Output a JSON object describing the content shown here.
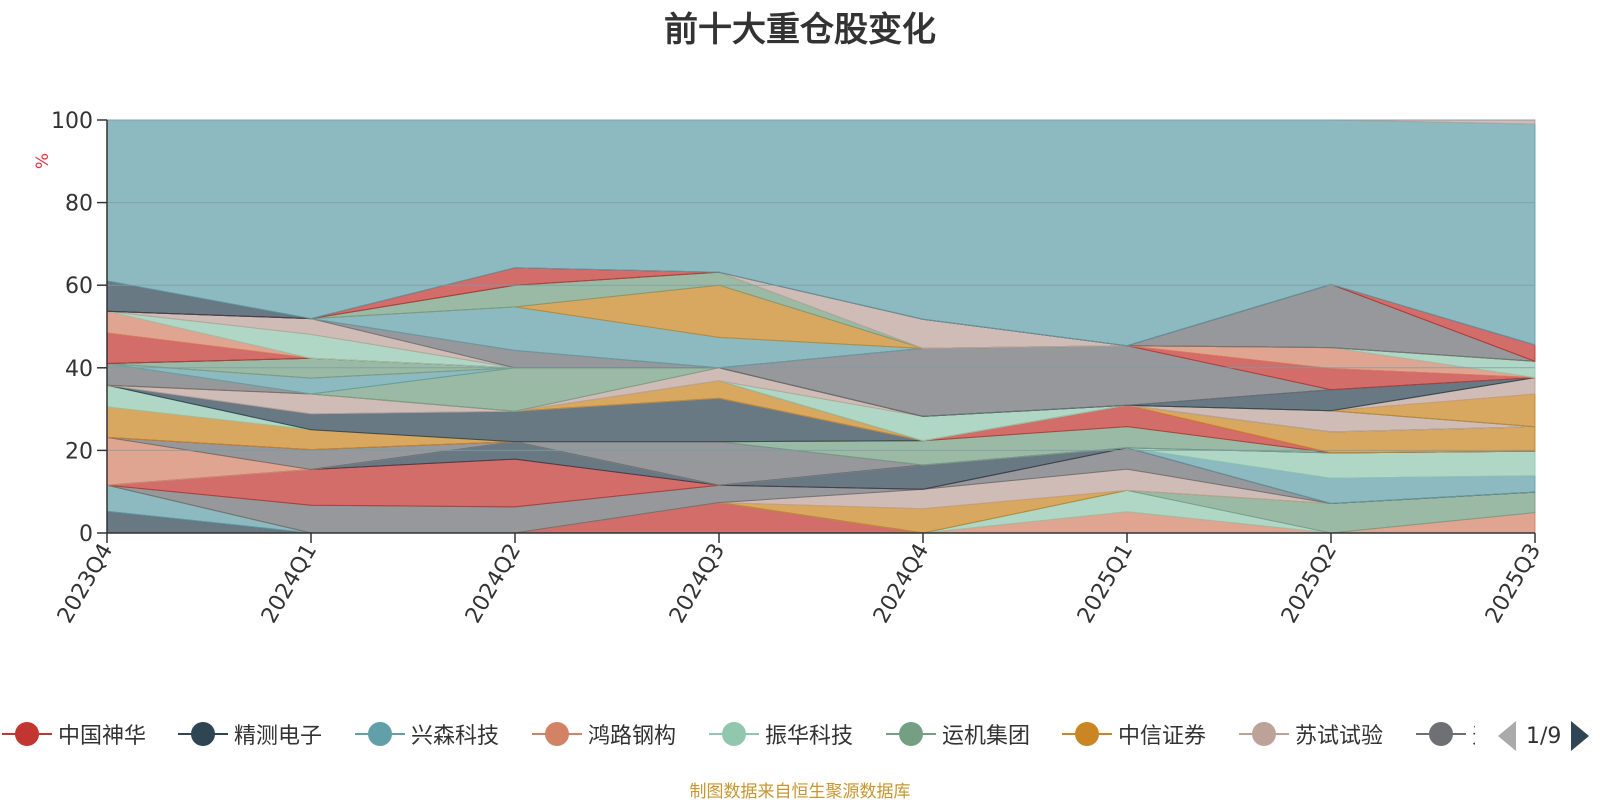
{
  "chart_data": {
    "type": "area",
    "stacked": true,
    "percent_stacked": true,
    "title": "前十大重仓股变化",
    "ylabel": "%",
    "ylim": [
      0,
      100
    ],
    "yticks": [
      0,
      20,
      40,
      60,
      80,
      100
    ],
    "grid": true,
    "categories": [
      "2023Q4",
      "2024Q1",
      "2024Q2",
      "2024Q3",
      "2024Q4",
      "2025Q1",
      "2025Q2",
      "2025Q3"
    ],
    "series": [
      {
        "name": "中国神华",
        "color": "#c23531",
        "values": [
          0,
          0,
          0,
          7,
          0,
          0,
          0,
          0
        ]
      },
      {
        "name": "精测电子",
        "color": "#2f4554",
        "values": [
          5,
          0,
          0,
          0,
          0,
          0,
          0,
          0
        ]
      },
      {
        "name": "兴森科技",
        "color": "#61a0a8",
        "values": [
          6,
          0,
          0,
          0,
          0,
          0,
          0,
          0
        ]
      },
      {
        "name": "鸿路钢构",
        "color": "#d48265",
        "values": [
          0,
          0,
          0,
          0,
          0,
          5,
          0,
          5
        ]
      },
      {
        "name": "振华科技",
        "color": "#91c7ae",
        "values": [
          0,
          0,
          0,
          0,
          0,
          5,
          0,
          0
        ]
      },
      {
        "name": "运机集团",
        "color": "#749f83",
        "values": [
          0,
          0,
          0,
          0,
          0,
          0,
          7,
          5
        ]
      },
      {
        "name": "中信证券",
        "color": "#ca8622",
        "values": [
          0,
          0,
          0,
          0,
          5,
          0,
          0,
          0
        ]
      },
      {
        "name": "苏试试验",
        "color": "#bda29a",
        "values": [
          0,
          0,
          0,
          0,
          4,
          5,
          0,
          0
        ]
      },
      {
        "name": "",
        "color": "#6e7074",
        "values": [
          0,
          7,
          6,
          4,
          0,
          5,
          0,
          0
        ]
      },
      {
        "name": "",
        "color": "#c23531",
        "values": [
          0,
          9,
          11,
          0,
          0,
          0,
          0,
          0
        ]
      },
      {
        "name": "",
        "color": "#2f4554",
        "values": [
          0,
          0,
          4,
          0,
          5,
          0,
          0,
          0
        ]
      },
      {
        "name": "",
        "color": "#61a0a8",
        "values": [
          0,
          0,
          0,
          0,
          0,
          0,
          6,
          4
        ]
      },
      {
        "name": "",
        "color": "#91c7ae",
        "values": [
          0,
          0,
          0,
          0,
          0,
          0,
          6,
          6
        ]
      },
      {
        "name": "",
        "color": "#d48265",
        "values": [
          11,
          0,
          0,
          0,
          0,
          0,
          0,
          0
        ]
      },
      {
        "name": "",
        "color": "#6e7074",
        "values": [
          0,
          5,
          0,
          10,
          0,
          0,
          0,
          0
        ]
      },
      {
        "name": "",
        "color": "#749f83",
        "values": [
          0,
          0,
          0,
          0,
          5,
          5,
          0,
          0
        ]
      },
      {
        "name": "",
        "color": "#c23531",
        "values": [
          0,
          0,
          0,
          0,
          0,
          5,
          0,
          0
        ]
      },
      {
        "name": "",
        "color": "#ca8622",
        "values": [
          7,
          5,
          0,
          0,
          0,
          0,
          5,
          6
        ]
      },
      {
        "name": "",
        "color": "#91c7ae",
        "values": [
          5,
          0,
          0,
          0,
          0,
          0,
          0,
          0
        ]
      },
      {
        "name": "",
        "color": "#2f4554",
        "values": [
          0,
          4,
          7,
          10,
          0,
          0,
          0,
          0
        ]
      },
      {
        "name": "",
        "color": "#bda29a",
        "values": [
          0,
          5,
          0,
          0,
          0,
          0,
          0,
          0
        ]
      },
      {
        "name": "",
        "color": "#ca8622",
        "values": [
          0,
          0,
          0,
          4,
          0,
          0,
          0,
          0
        ]
      },
      {
        "name": "",
        "color": "#6e7074",
        "values": [
          5,
          0,
          0,
          0,
          0,
          0,
          0,
          0
        ]
      },
      {
        "name": "",
        "color": "#91c7ae",
        "values": [
          0,
          0,
          0,
          0,
          5,
          0,
          0,
          0
        ]
      },
      {
        "name": "",
        "color": "#bda29a",
        "values": [
          0,
          0,
          0,
          3,
          0,
          0,
          5,
          0
        ]
      },
      {
        "name": "",
        "color": "#749f83",
        "values": [
          0,
          0,
          10,
          0,
          0,
          0,
          0,
          0
        ]
      },
      {
        "name": "",
        "color": "#61a0a8",
        "values": [
          0,
          4,
          0,
          0,
          0,
          0,
          0,
          0
        ]
      },
      {
        "name": "",
        "color": "#ca8622",
        "values": [
          0,
          0,
          0,
          0,
          0,
          0,
          0,
          8
        ]
      },
      {
        "name": "",
        "color": "#bda29a",
        "values": [
          0,
          0,
          0,
          0,
          0,
          0,
          0,
          4
        ]
      },
      {
        "name": "",
        "color": "#749f83",
        "values": [
          0,
          5,
          0,
          0,
          0,
          0,
          0,
          0
        ]
      },
      {
        "name": "",
        "color": "#2f4554",
        "values": [
          0,
          0,
          0,
          0,
          0,
          0,
          5,
          0
        ]
      },
      {
        "name": "",
        "color": "#6e7074",
        "values": [
          0,
          0,
          0,
          0,
          14,
          14,
          0,
          0
        ]
      },
      {
        "name": "",
        "color": "#c23531",
        "values": [
          7,
          0,
          0,
          0,
          0,
          0,
          5,
          0
        ]
      },
      {
        "name": "",
        "color": "#d48265",
        "values": [
          5,
          0,
          0,
          0,
          0,
          0,
          5,
          0
        ]
      },
      {
        "name": "",
        "color": "#91c7ae",
        "values": [
          0,
          6,
          0,
          0,
          0,
          0,
          0,
          4
        ]
      },
      {
        "name": "",
        "color": "#bda29a",
        "values": [
          0,
          4,
          0,
          0,
          0,
          0,
          0,
          0
        ]
      },
      {
        "name": "",
        "color": "#6e7074",
        "values": [
          0,
          0,
          4,
          0,
          0,
          0,
          0,
          0
        ]
      },
      {
        "name": "",
        "color": "#61a0a8",
        "values": [
          0,
          0,
          10,
          7,
          0,
          0,
          0,
          0
        ]
      },
      {
        "name": "",
        "color": "#ca8622",
        "values": [
          0,
          0,
          0,
          12,
          0,
          0,
          0,
          0
        ]
      },
      {
        "name": "",
        "color": "#749f83",
        "values": [
          0,
          0,
          5,
          3,
          0,
          0,
          0,
          0
        ]
      },
      {
        "name": "",
        "color": "#bda29a",
        "values": [
          0,
          0,
          0,
          0,
          6,
          0,
          0,
          0
        ]
      },
      {
        "name": "",
        "color": "#6e7074",
        "values": [
          0,
          0,
          0,
          0,
          0,
          0,
          15,
          0
        ]
      },
      {
        "name": "",
        "color": "#c23531",
        "values": [
          0,
          0,
          4,
          0,
          0,
          0,
          0,
          4
        ]
      },
      {
        "name": "",
        "color": "#2f4554",
        "values": [
          7,
          0,
          0,
          0,
          0,
          0,
          0,
          0
        ]
      },
      {
        "name": "",
        "color": "#61a0a8",
        "values": [
          37,
          50,
          34,
          35,
          41,
          53,
          39,
          54
        ]
      },
      {
        "name": "",
        "color": "#bda29a",
        "values": [
          0,
          0,
          0,
          0,
          0,
          0,
          0,
          1
        ]
      }
    ],
    "legend": {
      "position": "bottom",
      "page": "1/9",
      "visible_entries": [
        "中国神华",
        "精测电子",
        "兴森科技",
        "鸿路钢构",
        "振华科技",
        "运机集团",
        "中信证券",
        "苏试试验",
        "天"
      ]
    }
  },
  "legend_items": [
    {
      "label": "中国神华",
      "color": "#c23531"
    },
    {
      "label": "精测电子",
      "color": "#2f4554"
    },
    {
      "label": "兴森科技",
      "color": "#61a0a8"
    },
    {
      "label": "鸿路钢构",
      "color": "#d48265"
    },
    {
      "label": "振华科技",
      "color": "#91c7ae"
    },
    {
      "label": "运机集团",
      "color": "#749f83"
    },
    {
      "label": "中信证券",
      "color": "#ca8622"
    },
    {
      "label": "苏试试验",
      "color": "#bda29a"
    },
    {
      "label": "天",
      "color": "#6e7074"
    }
  ],
  "pager": {
    "text": "1/9"
  },
  "source": {
    "text": "制图数据来自恒生聚源数据库"
  },
  "colors": {
    "grid": "#7a9ea7",
    "axis": "#333333",
    "ylabel": "#e5323e",
    "source": "#c8962e"
  }
}
